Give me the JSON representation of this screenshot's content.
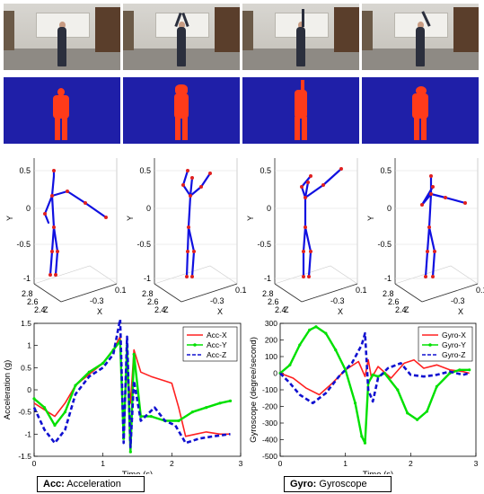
{
  "skeleton_panels": [
    {
      "ylabel": "Y",
      "zlabel": "Z",
      "xlabel": "X",
      "yticks": [
        "0.5",
        "0",
        "-0.5",
        "-1"
      ],
      "zticks": [
        "2.8",
        "2.6",
        "2.4"
      ],
      "xticks": [
        "0.1",
        "-0.3"
      ]
    },
    {
      "ylabel": "Y",
      "zlabel": "Z",
      "xlabel": "X",
      "yticks": [
        "0.5",
        "0",
        "-0.5",
        "-1"
      ],
      "zticks": [
        "2.8",
        "2.6",
        "2.4"
      ],
      "xticks": [
        "0.1",
        "-0.3"
      ]
    },
    {
      "ylabel": "Y",
      "zlabel": "Z",
      "xlabel": "X",
      "yticks": [
        "0.5",
        "0",
        "-0.5",
        "-1"
      ],
      "zticks": [
        "2.8",
        "2.6",
        "2.4"
      ],
      "xticks": [
        "0.1",
        "-0.3"
      ]
    },
    {
      "ylabel": "Y",
      "zlabel": "Z",
      "xlabel": "X",
      "yticks": [
        "0.5",
        "0",
        "-0.5",
        "-1"
      ],
      "zticks": [
        "2.8",
        "2.6",
        "2.4"
      ],
      "xticks": [
        "0.1",
        "-0.3"
      ]
    }
  ],
  "captions": {
    "acc_bold": "Acc:",
    "acc_text": " Acceleration",
    "gyro_bold": "Gyro:",
    "gyro_text": " Gyroscope"
  },
  "colors": {
    "segmentation_bg": "#1f1fa8",
    "segmentation_fg": "#ff3b1a",
    "skeleton_bone": "#1010e0",
    "skeleton_joint": "#e02020",
    "x_series": "#ff2020",
    "y_series": "#00e000",
    "z_series": "#1010d0"
  },
  "chart_data": [
    {
      "type": "line",
      "xlabel": "Time (s)",
      "ylabel": "Acceleration (g)",
      "xlim": [
        0,
        3
      ],
      "ylim": [
        -1.5,
        1.5
      ],
      "xticks": [
        "0",
        "1",
        "2",
        "3"
      ],
      "yticks": [
        "1.5",
        "1",
        "0.5",
        "0",
        "-0.5",
        "-1",
        "-1.5"
      ],
      "legend_position": "top-right",
      "series": [
        {
          "name": "Acc-X",
          "style": "solid",
          "x": [
            0,
            0.15,
            0.3,
            0.45,
            0.6,
            0.8,
            1.0,
            1.15,
            1.25,
            1.3,
            1.35,
            1.4,
            1.45,
            1.55,
            1.7,
            1.9,
            2.0,
            2.1,
            2.2,
            2.35,
            2.5,
            2.7,
            2.85
          ],
          "y": [
            -0.3,
            -0.45,
            -0.6,
            -0.3,
            0.1,
            0.35,
            0.6,
            0.9,
            1.2,
            -0.9,
            0.6,
            -0.3,
            0.9,
            0.4,
            0.3,
            0.2,
            0.15,
            -0.4,
            -1.05,
            -1.0,
            -0.95,
            -1.0,
            -1.0
          ]
        },
        {
          "name": "Acc-Y",
          "style": "solid-markers",
          "x": [
            0,
            0.15,
            0.3,
            0.45,
            0.6,
            0.8,
            1.0,
            1.15,
            1.25,
            1.3,
            1.35,
            1.4,
            1.45,
            1.55,
            1.7,
            1.9,
            2.1,
            2.3,
            2.5,
            2.7,
            2.85
          ],
          "y": [
            -0.2,
            -0.4,
            -0.8,
            -0.5,
            0.1,
            0.4,
            0.6,
            0.9,
            1.1,
            -1.1,
            1.0,
            -1.4,
            0.8,
            -0.6,
            -0.6,
            -0.7,
            -0.7,
            -0.5,
            -0.4,
            -0.3,
            -0.25
          ]
        },
        {
          "name": "Acc-Z",
          "style": "dashed",
          "x": [
            0,
            0.15,
            0.3,
            0.45,
            0.6,
            0.8,
            1.0,
            1.15,
            1.25,
            1.3,
            1.35,
            1.4,
            1.45,
            1.55,
            1.75,
            1.9,
            2.05,
            2.2,
            2.4,
            2.6,
            2.85
          ],
          "y": [
            -0.4,
            -0.9,
            -1.2,
            -0.9,
            -0.1,
            0.3,
            0.5,
            0.8,
            1.6,
            -1.2,
            1.2,
            -1.3,
            0.2,
            -0.7,
            -0.4,
            -0.7,
            -0.8,
            -1.2,
            -1.1,
            -1.05,
            -1.0
          ]
        }
      ]
    },
    {
      "type": "line",
      "xlabel": "Time (s)",
      "ylabel": "Gyroscope (degree/second)",
      "xlim": [
        0,
        3
      ],
      "ylim": [
        -500,
        300
      ],
      "xticks": [
        "0",
        "1",
        "2",
        "3"
      ],
      "yticks": [
        "300",
        "200",
        "100",
        "0",
        "-100",
        "-200",
        "-300",
        "-400",
        "-500"
      ],
      "legend_position": "top-right",
      "series": [
        {
          "name": "Gyro-X",
          "style": "solid",
          "x": [
            0,
            0.2,
            0.4,
            0.6,
            0.8,
            1.0,
            1.2,
            1.3,
            1.35,
            1.4,
            1.5,
            1.7,
            1.9,
            2.05,
            2.2,
            2.4,
            2.6,
            2.8,
            2.9
          ],
          "y": [
            0,
            -30,
            -90,
            -130,
            -60,
            20,
            70,
            -20,
            80,
            -30,
            40,
            -30,
            60,
            80,
            30,
            50,
            20,
            10,
            0
          ]
        },
        {
          "name": "Gyro-Y",
          "style": "solid-markers",
          "x": [
            0,
            0.15,
            0.3,
            0.45,
            0.55,
            0.7,
            0.85,
            1.0,
            1.15,
            1.25,
            1.3,
            1.35,
            1.42,
            1.5,
            1.6,
            1.8,
            1.95,
            2.1,
            2.25,
            2.4,
            2.6,
            2.75,
            2.9
          ],
          "y": [
            0,
            50,
            170,
            260,
            280,
            240,
            140,
            20,
            -180,
            -380,
            -420,
            -60,
            -10,
            -20,
            0,
            -100,
            -240,
            -280,
            -230,
            -80,
            0,
            20,
            20
          ]
        },
        {
          "name": "Gyro-Z",
          "style": "dashed",
          "x": [
            0,
            0.15,
            0.3,
            0.5,
            0.7,
            0.9,
            1.1,
            1.25,
            1.3,
            1.35,
            1.42,
            1.5,
            1.65,
            1.85,
            2.0,
            2.2,
            2.4,
            2.6,
            2.8,
            2.9
          ],
          "y": [
            0,
            -60,
            -130,
            -180,
            -120,
            -20,
            60,
            170,
            240,
            -100,
            -170,
            -30,
            30,
            60,
            -10,
            -20,
            -10,
            10,
            -10,
            0
          ]
        }
      ]
    }
  ]
}
